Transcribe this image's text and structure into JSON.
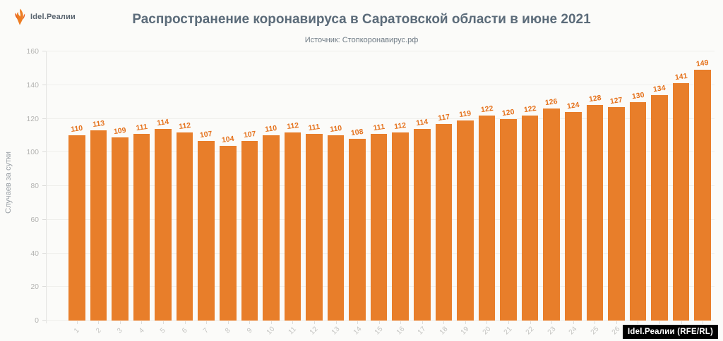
{
  "brand": {
    "logo_text": "Idel.Реалии",
    "watermark": "Idel.Реалии (RFE/RL)"
  },
  "chart_data": {
    "type": "bar",
    "title": "Распространение коронавируса в Саратовской области в июне 2021",
    "subtitle": "Источник: Стопкоронавирус.рф",
    "xlabel": "",
    "ylabel": "Случаев за сутки",
    "ylim": [
      0,
      160
    ],
    "yticks": [
      0,
      20,
      40,
      60,
      80,
      100,
      120,
      140,
      160
    ],
    "grid": true,
    "legend_position": "none",
    "bar_color": "#E87E2A",
    "value_label_color": "#E5731E",
    "categories": [
      "1",
      "2",
      "3",
      "4",
      "5",
      "6",
      "7",
      "8",
      "9",
      "10",
      "11",
      "12",
      "13",
      "14",
      "15",
      "16",
      "17",
      "18",
      "19",
      "20",
      "21",
      "22",
      "23",
      "24",
      "25",
      "26",
      "27",
      "28",
      "29",
      "30"
    ],
    "values": [
      110,
      113,
      109,
      111,
      114,
      112,
      107,
      104,
      107,
      110,
      112,
      111,
      110,
      108,
      111,
      112,
      114,
      117,
      119,
      122,
      120,
      122,
      126,
      124,
      128,
      127,
      130,
      134,
      141,
      149
    ]
  }
}
